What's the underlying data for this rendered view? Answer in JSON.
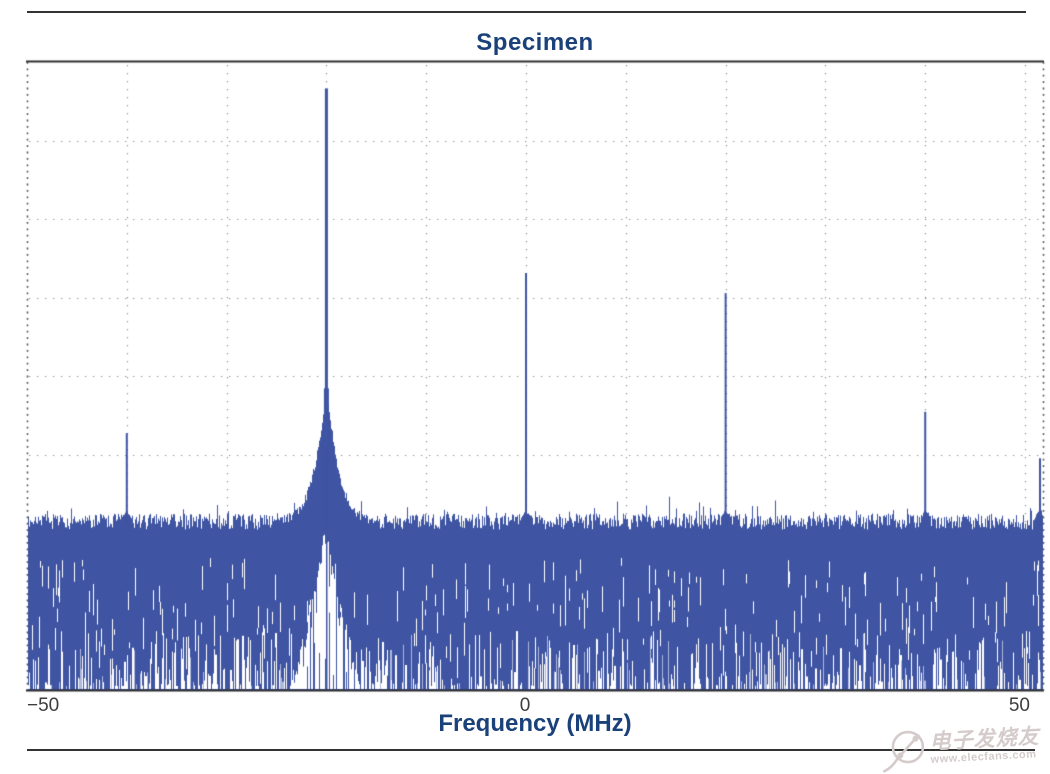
{
  "figure": {
    "background": "#ffffff",
    "rule_color": "#333333"
  },
  "chart_data": {
    "type": "line",
    "title": "Specimen",
    "title_color": "#1a4179",
    "xlabel": "Frequency (MHz)",
    "xlabel_color": "#1a4179",
    "x_ticks_mhz": [
      -50,
      0,
      50
    ],
    "x_ticks_display": [
      "−50",
      "0",
      "50"
    ],
    "tick_label_color": "#3d3d3d",
    "x_range_mhz": [
      -50,
      51.8
    ],
    "y_axis": {
      "visible_tick_labels": false,
      "divisions": 8
    },
    "grid": {
      "style": "dotted",
      "x_step_mhz": 10,
      "color": "#8d8d8d",
      "border_color": "#2e2e2e"
    },
    "trace_color": "#3f55a3",
    "noise_floor": {
      "top_fraction": 0.273
    },
    "peaks": [
      {
        "freq_mhz": -40,
        "height_fraction": 0.409
      },
      {
        "freq_mhz": -20,
        "height_fraction": 0.958,
        "skirt": true
      },
      {
        "freq_mhz": 0,
        "height_fraction": 0.664
      },
      {
        "freq_mhz": 20,
        "height_fraction": 0.632
      },
      {
        "freq_mhz": 40,
        "height_fraction": 0.443
      },
      {
        "freq_mhz": 51.5,
        "height_fraction": 0.369
      }
    ]
  },
  "watermark": {
    "brand": "电子发烧友",
    "url": "www.elecfans.com",
    "color": "#d5cbcb",
    "logo": "circuit-slingshot-icon"
  }
}
